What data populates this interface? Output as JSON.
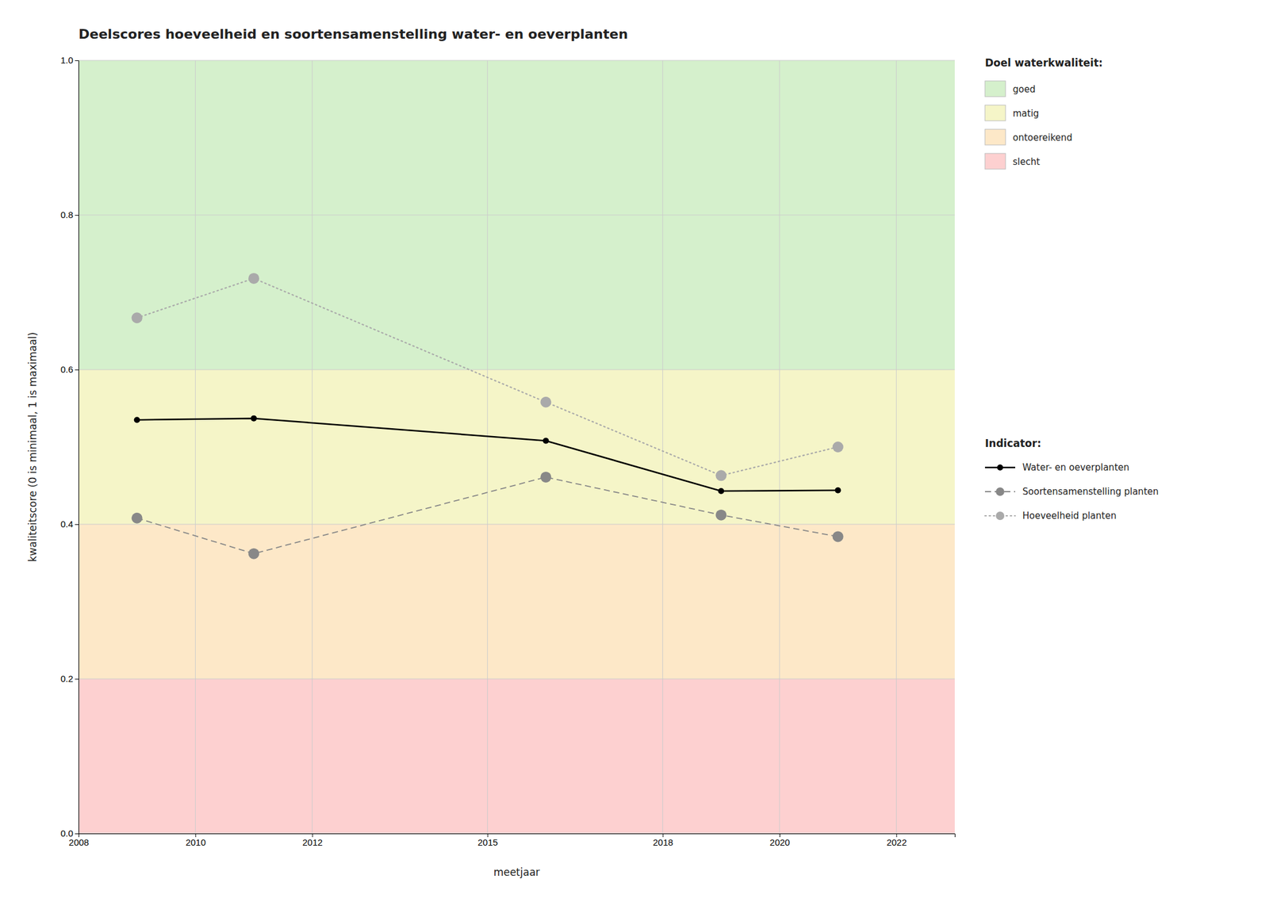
{
  "chart_data": {
    "type": "line",
    "title": "Deelscores hoeveelheid en soortensamenstelling water- en oeverplanten",
    "x_label": "meetjaar",
    "y_label": "kwaliteitscore (0 is minimaal, 1 is maximaal)",
    "xlim": [
      2008,
      2023
    ],
    "ylim": [
      0.0,
      1.0
    ],
    "xticks": [
      2008,
      2010,
      2012,
      2015,
      2018,
      2020,
      2022
    ],
    "yticks": [
      {
        "value": 0.0,
        "label": "0.0"
      },
      0.2,
      0.4,
      0.6,
      0.8,
      {
        "value": 1.0,
        "label": "1.0"
      }
    ],
    "grid": true,
    "legend": "right",
    "legend_title": "Indicator:",
    "x": [
      2009,
      2011,
      2016,
      2019,
      2021
    ],
    "series": [
      {
        "name": "Hoeveelheid planten",
        "color": "#aaaaaa",
        "line_style": "dotted",
        "marker": "circle",
        "values": [
          0.667,
          0.718,
          0.558,
          0.463,
          0.5
        ]
      },
      {
        "name": "Soortensamenstelling planten",
        "color": "#888888",
        "line_style": "dashed",
        "marker": "circle",
        "values": [
          0.408,
          0.362,
          0.461,
          0.412,
          0.384
        ]
      },
      {
        "name": "Water- en oeverplanten",
        "color": "#000000",
        "line_style": "solid",
        "marker": "circle",
        "values": [
          0.535,
          0.537,
          0.508,
          0.443,
          0.444
        ]
      }
    ],
    "bands": {
      "title": "Doel waterkwaliteit:",
      "items": [
        {
          "name": "goed",
          "ymin": 0.6,
          "ymax": 1.0,
          "color": "#d5f0cc"
        },
        {
          "name": "matig",
          "ymin": 0.4,
          "ymax": 0.6,
          "color": "#f5f5c8"
        },
        {
          "name": "ontoereikend",
          "ymin": 0.2,
          "ymax": 0.4,
          "color": "#fde8c8"
        },
        {
          "name": "slecht",
          "ymin": 0.0,
          "ymax": 0.2,
          "color": "#fdd0d0"
        }
      ]
    }
  }
}
